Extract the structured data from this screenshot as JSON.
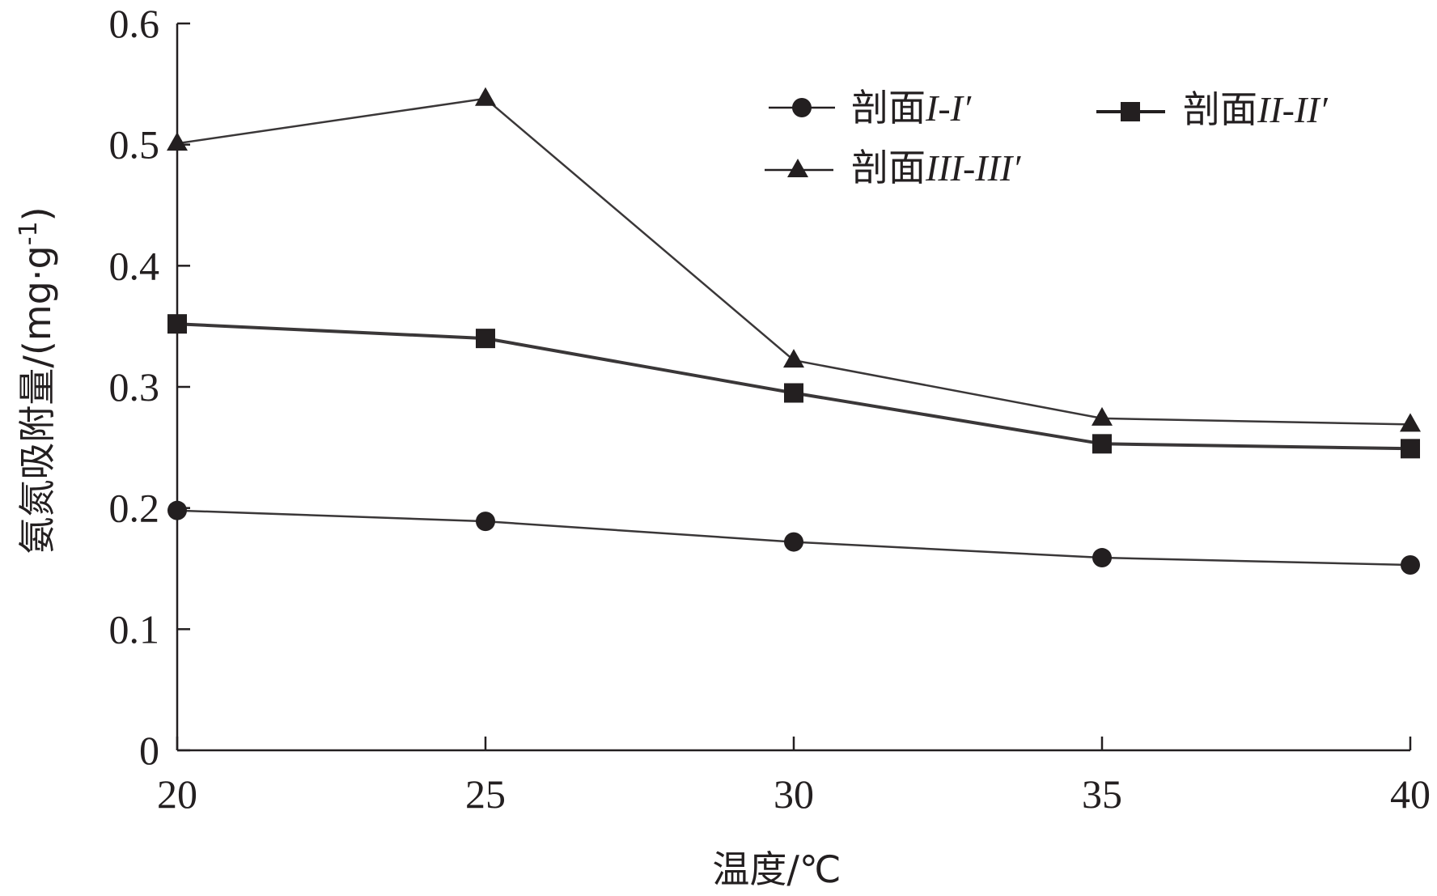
{
  "chart_data": {
    "type": "line",
    "xlabel": "温度/℃",
    "ylabel": "氨氮吸附量/(mg·g-1)",
    "ylabel_main": "氨氮吸附量/(mg·g",
    "ylabel_sup": "-1",
    "ylabel_close": ")",
    "x": [
      20,
      25,
      30,
      35,
      40
    ],
    "x_tick_labels": [
      "20",
      "25",
      "30",
      "35",
      "40"
    ],
    "y_tick_labels": [
      "0",
      "0.1",
      "0.2",
      "0.3",
      "0.4",
      "0.5",
      "0.6"
    ],
    "xlim": [
      20,
      40
    ],
    "ylim": [
      0,
      0.6
    ],
    "grid": false,
    "legend_position": "top-right",
    "series": [
      {
        "name": "剖面I-I′",
        "marker": "circle",
        "values": [
          0.198,
          0.189,
          0.172,
          0.159,
          0.153
        ]
      },
      {
        "name": "剖面II-II′",
        "marker": "square",
        "values": [
          0.352,
          0.34,
          0.295,
          0.253,
          0.249
        ]
      },
      {
        "name": "剖面III-III′",
        "marker": "triangle",
        "values": [
          0.501,
          0.538,
          0.322,
          0.274,
          0.269
        ]
      }
    ],
    "legend": [
      {
        "prefix": "剖面",
        "roman": "I-I′"
      },
      {
        "prefix": "剖面",
        "roman": "II-II′"
      },
      {
        "prefix": "剖面",
        "roman": "III-III′"
      }
    ],
    "colors": {
      "ink": "#231f20",
      "line": "#3a3738"
    }
  }
}
